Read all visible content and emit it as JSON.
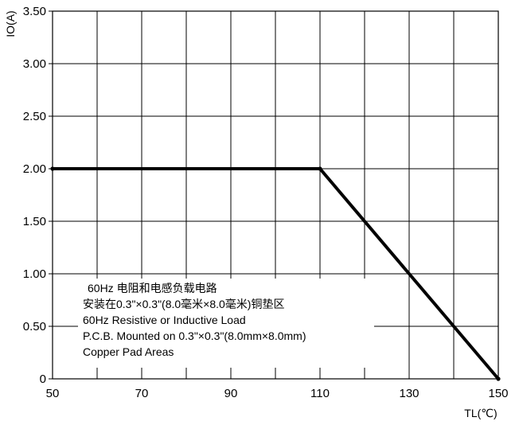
{
  "chart_data": {
    "type": "line",
    "title": "",
    "xlabel": "TL(℃)",
    "ylabel": "IO(A)",
    "xlim": [
      50,
      150
    ],
    "ylim": [
      0,
      3.5
    ],
    "grid": true,
    "x_major_ticks": [
      50,
      70,
      90,
      110,
      130,
      150
    ],
    "x_tick_labels": [
      "50",
      "70",
      "90",
      "110",
      "130",
      "150"
    ],
    "x_grid_step": 10,
    "y_ticks": [
      0,
      0.5,
      1.0,
      1.5,
      2.0,
      2.5,
      3.0,
      3.5
    ],
    "y_tick_labels": [
      "0",
      "0.50",
      "1.00",
      "1.50",
      "2.00",
      "2.50",
      "3.00",
      "3.50"
    ],
    "series": [
      {
        "x": [
          50,
          110,
          150
        ],
        "y": [
          2.0,
          2.0,
          0
        ]
      }
    ],
    "annotation_lines": [
      "60Hz 电阻和电感负载电路",
      "安装在0.3\"×0.3\"(8.0毫米×8.0毫米)铜垫区",
      "60Hz Resistive or Inductive Load",
      "P.C.B. Mounted on 0.3\"×0.3\"(8.0mm×8.0mm)",
      "Copper Pad Areas"
    ]
  }
}
